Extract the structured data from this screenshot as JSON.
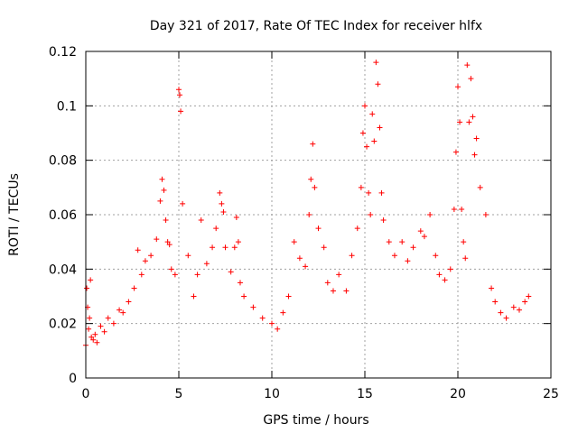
{
  "chart_data": {
    "type": "scatter",
    "title": "Day 321 of 2017, Rate Of TEC Index for receiver hlfx",
    "xlabel": "GPS time / hours",
    "ylabel": "ROTI / TECUs",
    "xlim": [
      0,
      25
    ],
    "ylim": [
      0,
      0.12
    ],
    "xticks": [
      "0",
      "5",
      "10",
      "15",
      "20",
      "25"
    ],
    "yticks": [
      "0",
      "0.02",
      "0.04",
      "0.06",
      "0.08",
      "0.1",
      "0.12"
    ],
    "grid": true,
    "marker": "+",
    "color": "#ff0000",
    "series": [
      {
        "name": "ROTI",
        "x": [
          0.0,
          0.05,
          0.1,
          0.15,
          0.2,
          0.25,
          0.3,
          0.4,
          0.5,
          0.6,
          0.8,
          1.0,
          1.2,
          1.5,
          1.8,
          2.0,
          2.3,
          2.6,
          2.8,
          3.0,
          3.2,
          3.5,
          3.8,
          4.0,
          4.1,
          4.2,
          4.3,
          4.4,
          4.5,
          4.6,
          4.8,
          5.0,
          5.05,
          5.1,
          5.2,
          5.5,
          5.8,
          6.0,
          6.2,
          6.5,
          6.8,
          7.0,
          7.2,
          7.3,
          7.4,
          7.5,
          7.8,
          8.0,
          8.1,
          8.2,
          8.3,
          8.5,
          9.0,
          9.5,
          10.0,
          10.3,
          10.6,
          10.9,
          11.2,
          11.5,
          11.8,
          12.0,
          12.1,
          12.2,
          12.3,
          12.5,
          12.8,
          13.0,
          13.3,
          13.6,
          14.0,
          14.3,
          14.6,
          14.8,
          14.9,
          15.0,
          15.1,
          15.2,
          15.3,
          15.4,
          15.5,
          15.6,
          15.7,
          15.8,
          15.9,
          16.0,
          16.3,
          16.6,
          17.0,
          17.3,
          17.6,
          18.0,
          18.2,
          18.5,
          18.8,
          19.0,
          19.3,
          19.6,
          19.8,
          19.9,
          20.0,
          20.1,
          20.2,
          20.3,
          20.4,
          20.5,
          20.6,
          20.7,
          20.8,
          20.9,
          21.0,
          21.2,
          21.5,
          21.8,
          22.0,
          22.3,
          22.6,
          23.0,
          23.3,
          23.6,
          23.8
        ],
        "y": [
          0.012,
          0.033,
          0.026,
          0.018,
          0.022,
          0.036,
          0.015,
          0.014,
          0.016,
          0.013,
          0.019,
          0.017,
          0.022,
          0.02,
          0.025,
          0.024,
          0.028,
          0.033,
          0.047,
          0.038,
          0.043,
          0.045,
          0.051,
          0.065,
          0.073,
          0.069,
          0.058,
          0.05,
          0.049,
          0.04,
          0.038,
          0.106,
          0.104,
          0.098,
          0.064,
          0.045,
          0.03,
          0.038,
          0.058,
          0.042,
          0.048,
          0.055,
          0.068,
          0.064,
          0.061,
          0.048,
          0.039,
          0.048,
          0.059,
          0.05,
          0.035,
          0.03,
          0.026,
          0.022,
          0.02,
          0.018,
          0.024,
          0.03,
          0.05,
          0.044,
          0.041,
          0.06,
          0.073,
          0.086,
          0.07,
          0.055,
          0.048,
          0.035,
          0.032,
          0.038,
          0.032,
          0.045,
          0.055,
          0.07,
          0.09,
          0.1,
          0.085,
          0.068,
          0.06,
          0.097,
          0.087,
          0.116,
          0.108,
          0.092,
          0.068,
          0.058,
          0.05,
          0.045,
          0.05,
          0.043,
          0.048,
          0.054,
          0.052,
          0.06,
          0.045,
          0.038,
          0.036,
          0.04,
          0.062,
          0.083,
          0.107,
          0.094,
          0.062,
          0.05,
          0.044,
          0.115,
          0.094,
          0.11,
          0.096,
          0.082,
          0.088,
          0.07,
          0.06,
          0.033,
          0.028,
          0.024,
          0.022,
          0.026,
          0.025,
          0.028,
          0.03
        ]
      }
    ]
  }
}
